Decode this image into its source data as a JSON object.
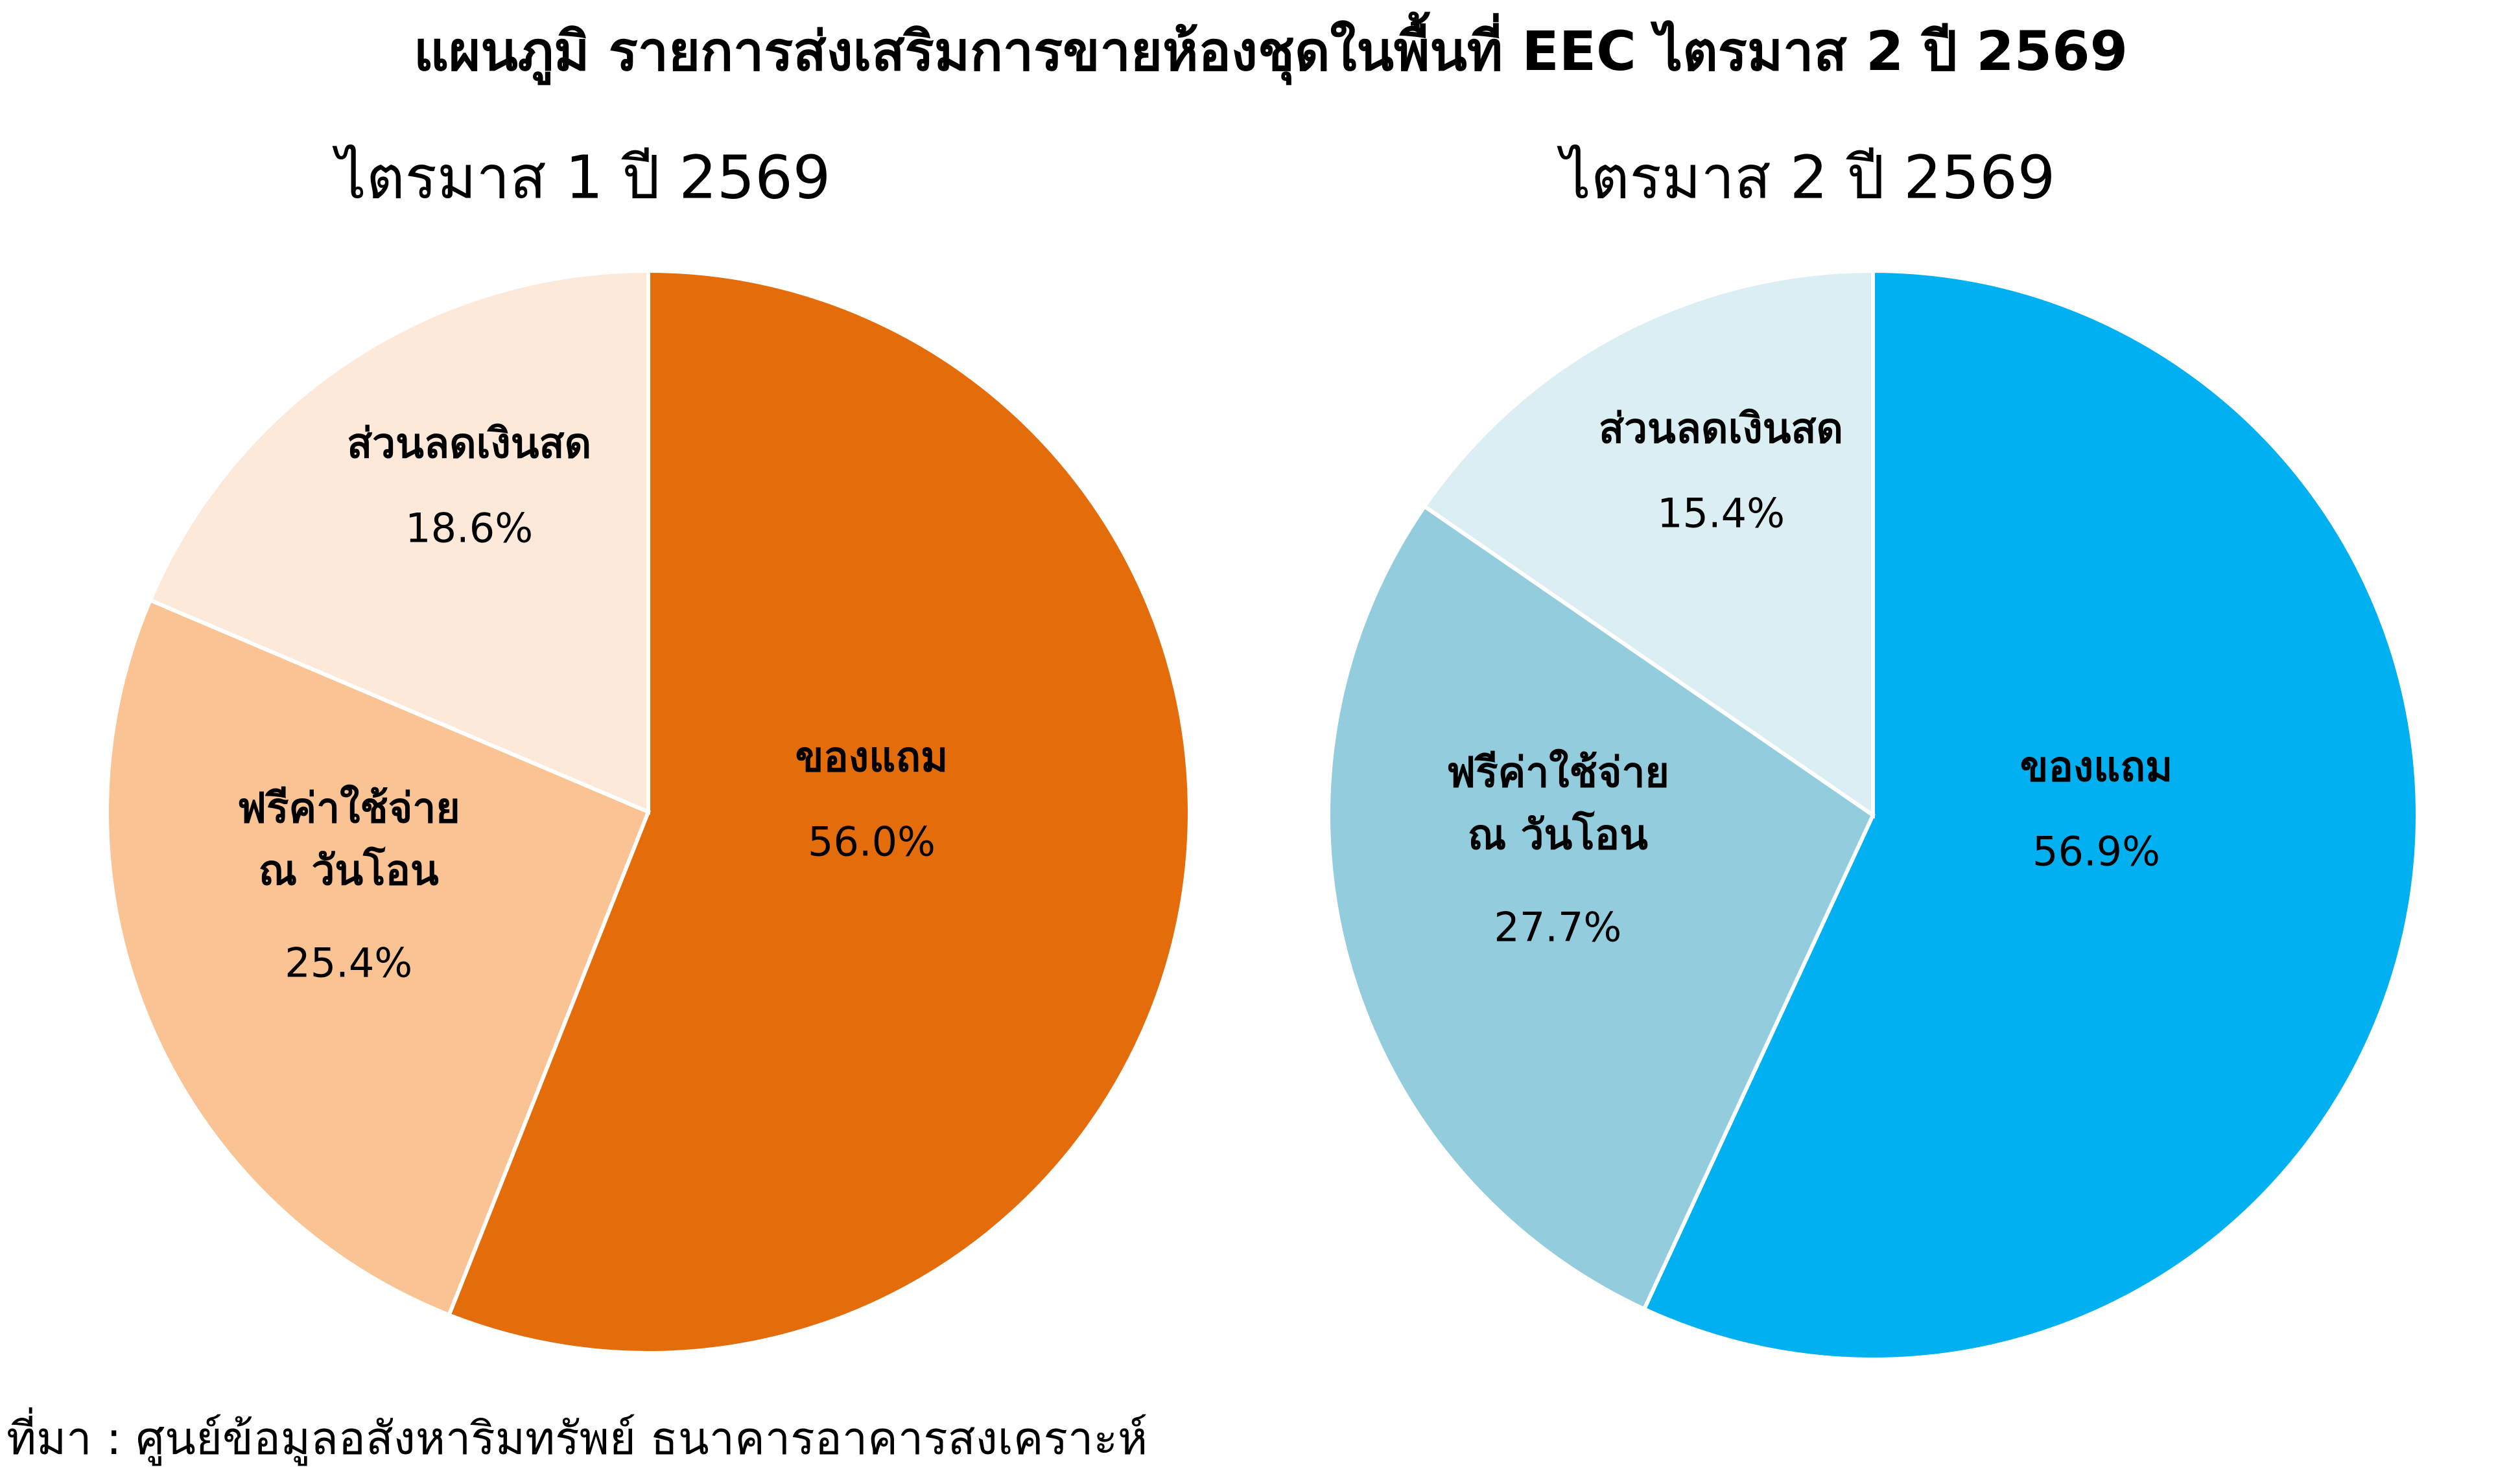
{
  "title": "แผนภูมิ รายการส่งเสริมการขายห้องชุดในพื้นที่ EEC ไตรมาส 2 ปี 2569",
  "source": "ที่มา : ศูนย์ข้อมูลอสังหาริมทรัพย์ ธนาคารอาคารสงเคราะห์",
  "chart_data": [
    {
      "type": "pie",
      "title": "ไตรมาส 1 ปี 2569",
      "categories": [
        "ของแถม",
        "ฟรีค่าใช้จ่าย\nณ วันโอน",
        "ส่วนลดเงินสด"
      ],
      "values": [
        56.0,
        25.4,
        18.6
      ],
      "value_labels": [
        "56.0%",
        "25.4%",
        "18.6%"
      ],
      "colors": [
        "#E46C0A",
        "#F9C394",
        "#FDE9D9"
      ]
    },
    {
      "type": "pie",
      "title": "ไตรมาส 2 ปี 2569",
      "categories": [
        "ของแถม",
        "ฟรีค่าใช้จ่าย\nณ วันโอน",
        "ส่วนลดเงินสด"
      ],
      "values": [
        56.9,
        27.7,
        15.4
      ],
      "value_labels": [
        "56.9%",
        "27.7%",
        "15.4%"
      ],
      "colors": [
        "#00B0F0",
        "#93CDDD",
        "#DBEEF4"
      ]
    }
  ]
}
